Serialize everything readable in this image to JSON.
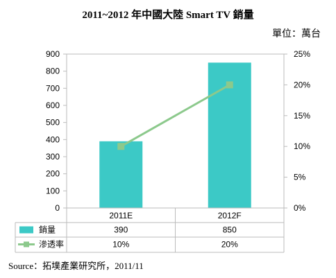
{
  "title": "2011~2012 年中國大陸 Smart TV 銷量",
  "unit_label": "單位：萬台",
  "source": "Source：拓墣產業研究所，2011/11",
  "colors": {
    "bar": "#3cc9c6",
    "line": "#8cc98c",
    "grid": "#bbbbbb"
  },
  "chart_data": {
    "type": "bar",
    "categories": [
      "2011E",
      "2012F"
    ],
    "series": [
      {
        "name": "銷量",
        "type": "bar",
        "axis": "left",
        "values": [
          390,
          850
        ],
        "labels": [
          "390",
          "850"
        ]
      },
      {
        "name": "滲透率",
        "type": "line",
        "axis": "right",
        "values": [
          10,
          20
        ],
        "labels": [
          "10%",
          "20%"
        ]
      }
    ],
    "y_left": {
      "min": 0,
      "max": 900,
      "step": 100,
      "ticks": [
        "0",
        "100",
        "200",
        "300",
        "400",
        "500",
        "600",
        "700",
        "800",
        "900"
      ]
    },
    "y_right": {
      "min": 0,
      "max": 25,
      "step": 5,
      "ticks": [
        "0%",
        "5%",
        "10%",
        "15%",
        "20%",
        "25%"
      ]
    },
    "grid": false,
    "legend": "data-table"
  }
}
